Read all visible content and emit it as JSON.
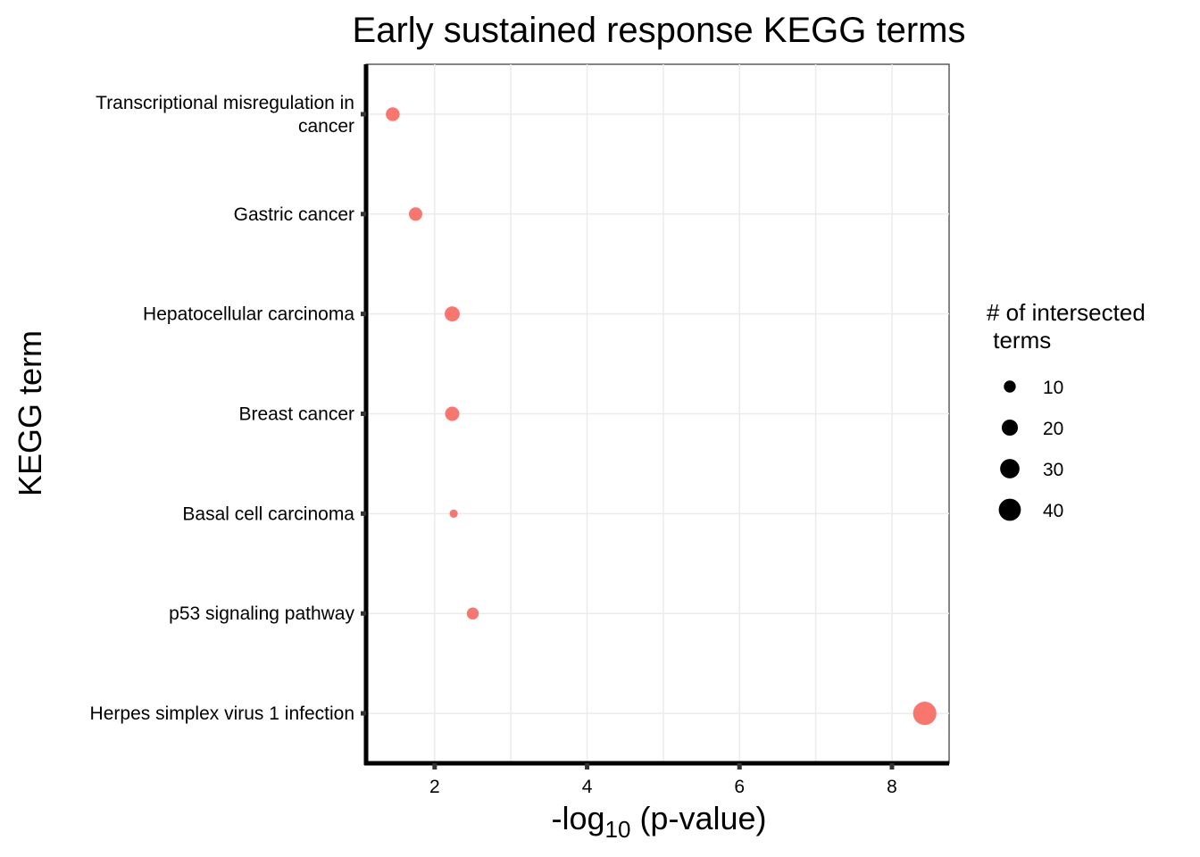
{
  "chart_data": {
    "type": "scatter",
    "title": "Early sustained response KEGG terms",
    "xlabel": {
      "prefix": "-log",
      "subscript": "10",
      "suffix": " (p-value)"
    },
    "ylabel": "KEGG term",
    "xlim": [
      1.1,
      8.75
    ],
    "x_ticks": [
      2,
      4,
      6,
      8
    ],
    "grid": true,
    "point_color": "#F8766D",
    "categories": [
      "Transcriptional misregulation in cancer",
      "Gastric cancer",
      "Hepatocellular carcinoma",
      "Breast cancer",
      "Basal cell carcinoma",
      "p53 signaling pathway",
      "Herpes simplex virus 1 infection"
    ],
    "category_label_lines": [
      [
        "Transcriptional misregulation in",
        "cancer"
      ],
      [
        "Gastric cancer"
      ],
      [
        "Hepatocellular carcinoma"
      ],
      [
        "Breast cancer"
      ],
      [
        "Basal cell carcinoma"
      ],
      [
        "p53 signaling pathway"
      ],
      [
        "Herpes simplex virus 1 infection"
      ]
    ],
    "points": [
      {
        "term": "Transcriptional misregulation in cancer",
        "x": 1.45,
        "size": 14
      },
      {
        "term": "Gastric cancer",
        "x": 1.75,
        "size": 13
      },
      {
        "term": "Hepatocellular carcinoma",
        "x": 2.23,
        "size": 17
      },
      {
        "term": "Breast cancer",
        "x": 2.23,
        "size": 15
      },
      {
        "term": "Basal cell carcinoma",
        "x": 2.25,
        "size": 4
      },
      {
        "term": "p53 signaling pathway",
        "x": 2.5,
        "size": 10
      },
      {
        "term": "Herpes simplex virus 1 infection",
        "x": 8.43,
        "size": 45
      }
    ],
    "legend": {
      "title_lines": [
        "# of intersected",
        " terms"
      ],
      "position": "right",
      "items": [
        {
          "label": "10",
          "size": 10
        },
        {
          "label": "20",
          "size": 20
        },
        {
          "label": "30",
          "size": 30
        },
        {
          "label": "40",
          "size": 40
        }
      ]
    }
  }
}
